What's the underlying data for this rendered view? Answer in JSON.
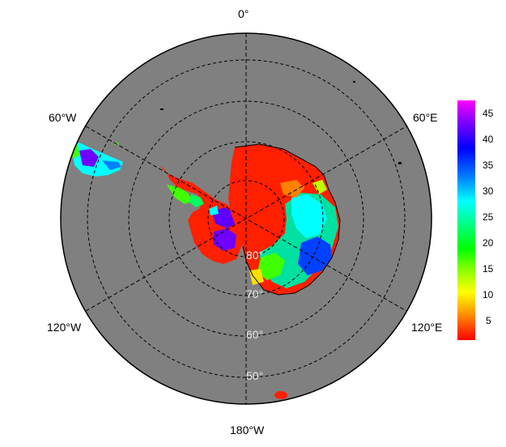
{
  "map": {
    "projection": "south-polar-stereographic",
    "ocean_color": "#808080",
    "coast_color": "#000000",
    "grid_color": "#000000",
    "lon_labels": {
      "top": "0°",
      "upper_left": "60°W",
      "upper_right": "60°E",
      "lower_left": "120°W",
      "lower_right": "120°E",
      "bottom": "180°W"
    },
    "lat_labels": [
      "80°",
      "70°",
      "60°",
      "50°"
    ]
  },
  "colorbar": {
    "ticks": [
      "45",
      "40",
      "35",
      "30",
      "25",
      "20",
      "15",
      "10",
      "5"
    ],
    "colors": [
      "#ff00ff",
      "#8000ff",
      "#0000ff",
      "#0080ff",
      "#00ffff",
      "#00ff80",
      "#00ff00",
      "#80ff00",
      "#ffff00",
      "#ffc000",
      "#ff8000",
      "#ff0000"
    ]
  }
}
